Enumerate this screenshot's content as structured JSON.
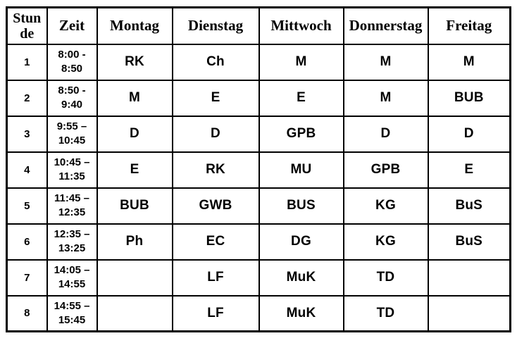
{
  "colors": {
    "background": "#ffffff",
    "border": "#000000",
    "text": "#000000"
  },
  "table": {
    "headers": [
      "Stunde",
      "Zeit",
      "Montag",
      "Dienstag",
      "Mittwoch",
      "Donnerstag",
      "Freitag"
    ],
    "rows": [
      [
        "1",
        "8:00 - 8:50",
        "RK",
        "Ch",
        "M",
        "M",
        "M"
      ],
      [
        "2",
        "8:50 - 9:40",
        "M",
        "E",
        "E",
        "M",
        "BUB"
      ],
      [
        "3",
        "9:55 – 10:45",
        "D",
        "D",
        "GPB",
        "D",
        "D"
      ],
      [
        "4",
        "10:45 – 11:35",
        "E",
        "RK",
        "MU",
        "GPB",
        "E"
      ],
      [
        "5",
        "11:45 – 12:35",
        "BUB",
        "GWB",
        "BUS",
        "KG",
        "BuS"
      ],
      [
        "6",
        "12:35 – 13:25",
        "Ph",
        "EC",
        "DG",
        "KG",
        "BuS"
      ],
      [
        "7",
        "14:05 – 14:55",
        "",
        "LF",
        "MuK",
        "TD",
        ""
      ],
      [
        "8",
        "14:55 – 15:45",
        "",
        "LF",
        "MuK",
        "TD",
        ""
      ]
    ]
  }
}
